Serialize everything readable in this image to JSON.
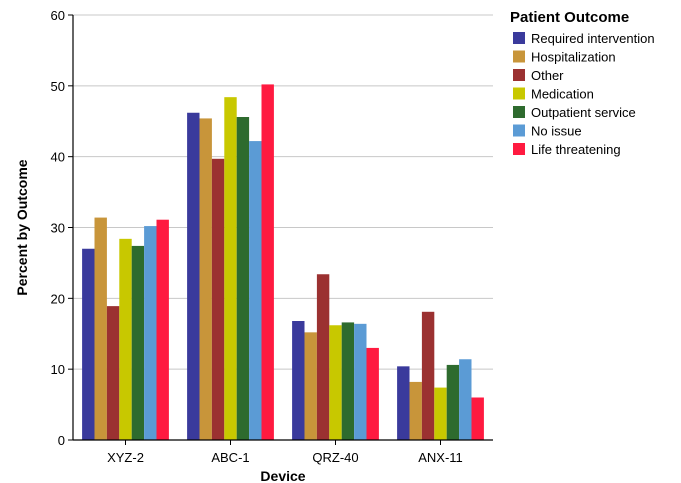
{
  "chart_data": {
    "type": "bar",
    "xlabel": "Device",
    "ylabel": "Percent by Outcome",
    "ylim": [
      0,
      60
    ],
    "yticks": [
      0,
      10,
      20,
      30,
      40,
      50,
      60
    ],
    "grid": "horizontal",
    "legend_title": "Patient Outcome",
    "legend_position": "right",
    "categories": [
      "XYZ-2",
      "ABC-1",
      "QRZ-40",
      "ANX-11"
    ],
    "series": [
      {
        "name": "Required intervention",
        "color": "#3a3a9c",
        "values": [
          27.0,
          46.2,
          16.8,
          10.4
        ]
      },
      {
        "name": "Hospitalization",
        "color": "#c8953a",
        "values": [
          31.4,
          45.4,
          15.2,
          8.2
        ]
      },
      {
        "name": "Other",
        "color": "#9b3131",
        "values": [
          18.9,
          39.7,
          23.4,
          18.1
        ]
      },
      {
        "name": "Medication",
        "color": "#c8c800",
        "values": [
          28.4,
          48.4,
          16.2,
          7.4
        ]
      },
      {
        "name": "Outpatient service",
        "color": "#2e6b2e",
        "values": [
          27.4,
          45.6,
          16.6,
          10.6
        ]
      },
      {
        "name": "No issue",
        "color": "#5b9bd5",
        "values": [
          30.2,
          42.2,
          16.4,
          11.4
        ]
      },
      {
        "name": "Life threatening",
        "color": "#ff1a40",
        "values": [
          31.1,
          50.2,
          13.0,
          6.0
        ]
      }
    ]
  }
}
